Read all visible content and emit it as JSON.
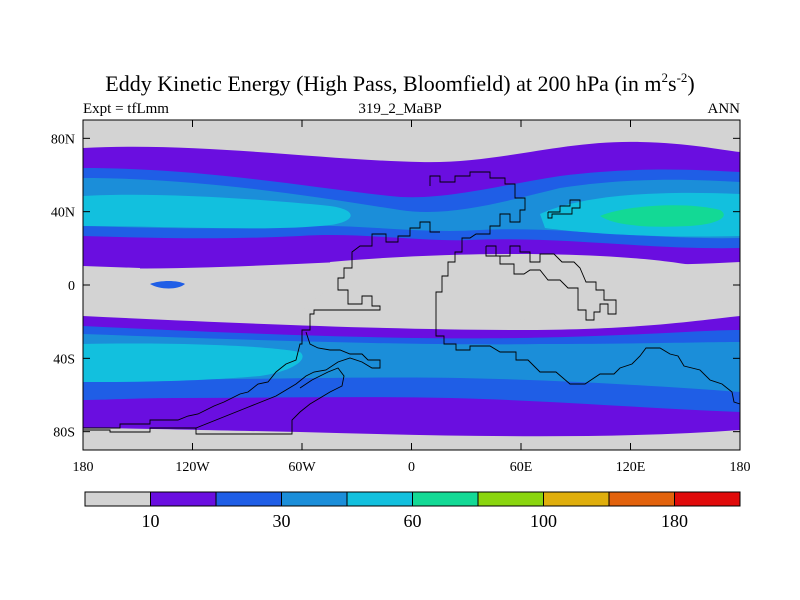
{
  "title": {
    "text": "Eddy Kinetic Energy (High Pass, Bloomfield) at 200 hPa (in m",
    "sup1": "2",
    "mid": "s",
    "sup2": "-2",
    "close": ")"
  },
  "subtitles": {
    "left": "Expt = tfLmm",
    "center": "319_2_MaBP",
    "right": "ANN"
  },
  "map": {
    "lat_ticks": [
      {
        "value": 80,
        "label": "80N"
      },
      {
        "value": 40,
        "label": "40N"
      },
      {
        "value": 0,
        "label": "0"
      },
      {
        "value": -40,
        "label": "40S"
      },
      {
        "value": -80,
        "label": "80S"
      }
    ],
    "lon_ticks": [
      {
        "value": -180,
        "label": "180"
      },
      {
        "value": -120,
        "label": "120W"
      },
      {
        "value": -60,
        "label": "60W"
      },
      {
        "value": 0,
        "label": "0"
      },
      {
        "value": 60,
        "label": "60E"
      },
      {
        "value": 120,
        "label": "120E"
      },
      {
        "value": 180,
        "label": "180"
      }
    ],
    "colors": {
      "c0": "#d3d3d3",
      "c1": "#6a0ee0",
      "c2": "#1f5ee6",
      "c3": "#1b8ed9",
      "c4": "#12c0de",
      "c5": "#13d995",
      "c6": "#8ad50e",
      "c7": "#dfae0c",
      "c8": "#e2620c",
      "c9": "#e00a0a",
      "outline": "#000000"
    }
  },
  "colorbar": {
    "colors": [
      "#d3d3d3",
      "#6a0ee0",
      "#1f5ee6",
      "#1b8ed9",
      "#12c0de",
      "#13d995",
      "#8ad50e",
      "#dfae0c",
      "#e2620c",
      "#e00a0a"
    ],
    "labels": [
      {
        "boundary": 1,
        "text": "10"
      },
      {
        "boundary": 3,
        "text": "30"
      },
      {
        "boundary": 5,
        "text": "60"
      },
      {
        "boundary": 7,
        "text": "100"
      },
      {
        "boundary": 9,
        "text": "180"
      }
    ]
  }
}
